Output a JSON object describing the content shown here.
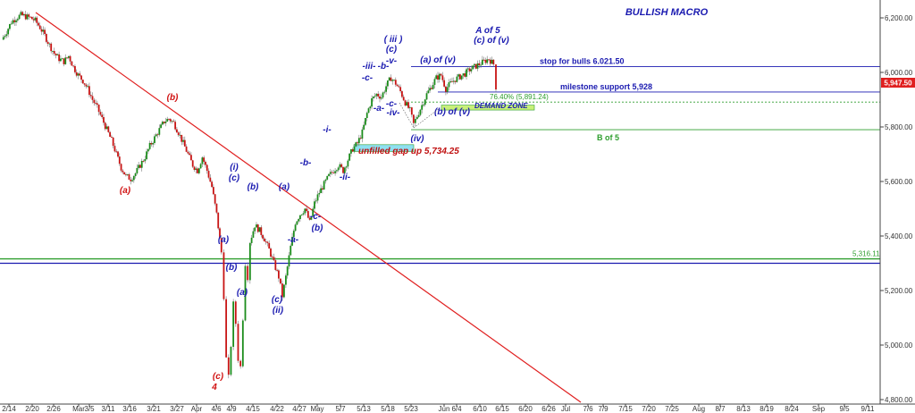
{
  "chart_data": {
    "type": "candlestick",
    "title": "BULLISH MACRO",
    "ylim": [
      4700,
      6250
    ],
    "yticks": [
      4800,
      5000,
      5200,
      5400,
      5600,
      5800,
      6000,
      6200
    ],
    "ytick_labels": [
      "4,800.00",
      "5,000.00",
      "5,200.00",
      "5,400.00",
      "5,600.00",
      "5,800.00",
      "6,000.00",
      "6,200.00"
    ],
    "x_labels": [
      "2/14",
      "2/20",
      "2/26",
      "Mar",
      "3/5",
      "3/11",
      "3/16",
      "3/21",
      "3/27",
      "Apr",
      "4/6",
      "4/9",
      "4/15",
      "4/22",
      "4/27",
      "May",
      "5/7",
      "5/13",
      "5/18",
      "5/23",
      "Jun",
      "6/4",
      "6/10",
      "6/15",
      "6/20",
      "6/26",
      "Jul",
      "7/6",
      "7/9",
      "7/15",
      "7/20",
      "7/25",
      "Aug",
      "8/7",
      "8/13",
      "8/19",
      "8/24",
      "Sep",
      "9/5",
      "9/11"
    ],
    "last_price": "5,947.50",
    "price_path": [
      [
        0,
        6120
      ],
      [
        4,
        6150
      ],
      [
        8,
        6185
      ],
      [
        12,
        6200
      ],
      [
        16,
        6210
      ],
      [
        20,
        6205
      ],
      [
        24,
        6200
      ],
      [
        28,
        6190
      ],
      [
        32,
        6165
      ],
      [
        36,
        6135
      ],
      [
        40,
        6100
      ],
      [
        44,
        6070
      ],
      [
        48,
        6050
      ],
      [
        52,
        6040
      ],
      [
        56,
        6060
      ],
      [
        60,
        6020
      ],
      [
        64,
        5990
      ],
      [
        68,
        5970
      ],
      [
        72,
        5940
      ],
      [
        76,
        5900
      ],
      [
        80,
        5870
      ],
      [
        84,
        5830
      ],
      [
        88,
        5790
      ],
      [
        92,
        5750
      ],
      [
        96,
        5700
      ],
      [
        100,
        5650
      ],
      [
        104,
        5620
      ],
      [
        108,
        5610
      ],
      [
        112,
        5630
      ],
      [
        116,
        5660
      ],
      [
        120,
        5690
      ],
      [
        124,
        5730
      ],
      [
        128,
        5760
      ],
      [
        132,
        5790
      ],
      [
        136,
        5820
      ],
      [
        140,
        5830
      ],
      [
        144,
        5815
      ],
      [
        148,
        5780
      ],
      [
        152,
        5740
      ],
      [
        156,
        5700
      ],
      [
        160,
        5660
      ],
      [
        164,
        5640
      ],
      [
        168,
        5690
      ],
      [
        172,
        5640
      ],
      [
        176,
        5580
      ],
      [
        180,
        5480
      ],
      [
        184,
        5340
      ],
      [
        186,
        5180
      ],
      [
        188,
        4950
      ],
      [
        190,
        4880
      ],
      [
        192,
        5000
      ],
      [
        194,
        5150
      ],
      [
        196,
        5080
      ],
      [
        198,
        4950
      ],
      [
        200,
        4920
      ],
      [
        202,
        5100
      ],
      [
        204,
        5300
      ],
      [
        206,
        5250
      ],
      [
        208,
        5380
      ],
      [
        212,
        5440
      ],
      [
        216,
        5420
      ],
      [
        220,
        5390
      ],
      [
        224,
        5350
      ],
      [
        228,
        5300
      ],
      [
        232,
        5250
      ],
      [
        235,
        5180
      ],
      [
        238,
        5250
      ],
      [
        242,
        5360
      ],
      [
        246,
        5450
      ],
      [
        250,
        5480
      ],
      [
        254,
        5500
      ],
      [
        258,
        5450
      ],
      [
        262,
        5520
      ],
      [
        266,
        5560
      ],
      [
        270,
        5590
      ],
      [
        274,
        5620
      ],
      [
        278,
        5640
      ],
      [
        282,
        5660
      ],
      [
        286,
        5640
      ],
      [
        290,
        5680
      ],
      [
        294,
        5720
      ],
      [
        298,
        5740
      ],
      [
        302,
        5780
      ],
      [
        306,
        5850
      ],
      [
        310,
        5900
      ],
      [
        314,
        5920
      ],
      [
        318,
        5910
      ],
      [
        322,
        5950
      ],
      [
        326,
        5980
      ],
      [
        330,
        5960
      ],
      [
        334,
        5930
      ],
      [
        338,
        5890
      ],
      [
        342,
        5860
      ],
      [
        345,
        5810
      ],
      [
        348,
        5840
      ],
      [
        352,
        5880
      ],
      [
        356,
        5920
      ],
      [
        360,
        5950
      ],
      [
        364,
        5980
      ],
      [
        368,
        5990
      ],
      [
        372,
        5940
      ],
      [
        376,
        5960
      ],
      [
        380,
        5975
      ],
      [
        384,
        5985
      ],
      [
        388,
        5995
      ],
      [
        392,
        6010
      ],
      [
        396,
        6020
      ],
      [
        400,
        6030
      ],
      [
        404,
        6040
      ],
      [
        408,
        6050
      ],
      [
        412,
        6030
      ],
      [
        414,
        5947
      ]
    ],
    "levels": [
      {
        "value": 6021.5,
        "label": "stop for bulls 6.021.50",
        "color": "#1a1ab0"
      },
      {
        "value": 5928,
        "label": "milestone support  5,928",
        "color": "#1a1ab0"
      },
      {
        "value": 5891.24,
        "label": "76.40% (5,891.24)",
        "color": "#2e9e2e"
      },
      {
        "value": 5790,
        "label": "B of 5",
        "color": "#2e9e2e"
      },
      {
        "value": 5316.11,
        "label": "5,316.11",
        "color": "#2e9e2e"
      },
      {
        "value": 5300,
        "label": "",
        "color": "#1a1ab0"
      }
    ],
    "zones": [
      {
        "label": "DEMAND ZONE",
        "from": 5862,
        "to": 5880,
        "color": "#c8f078"
      },
      {
        "label": "unfilled gap up 5,734.25",
        "from": 5710,
        "to": 5735,
        "color": "#8ee0f0"
      }
    ],
    "waves": [
      {
        "text": "(b)",
        "color": "#d01010"
      },
      {
        "text": "(a)",
        "color": "#d01010"
      },
      {
        "text": "(c)",
        "color": "#d01010"
      },
      {
        "text": "4",
        "color": "#d01010"
      },
      {
        "text": "(i)",
        "color": "#1a1ab0"
      },
      {
        "text": "(c)",
        "color": "#1a1ab0"
      },
      {
        "text": "(b)",
        "color": "#1a1ab0"
      },
      {
        "text": "(a)",
        "color": "#1a1ab0"
      },
      {
        "text": "(a)",
        "color": "#1a1ab0"
      },
      {
        "text": "(b)",
        "color": "#1a1ab0"
      },
      {
        "text": "-a-",
        "color": "#1a1ab0"
      },
      {
        "text": "(c)",
        "color": "#1a1ab0"
      },
      {
        "text": "(ii)",
        "color": "#1a1ab0"
      },
      {
        "text": "(a)",
        "color": "#1a1ab0"
      },
      {
        "text": "-c-",
        "color": "#1a1ab0"
      },
      {
        "text": "(b)",
        "color": "#1a1ab0"
      },
      {
        "text": "-b-",
        "color": "#1a1ab0"
      },
      {
        "text": "-i-",
        "color": "#1a1ab0"
      },
      {
        "text": "-ii-",
        "color": "#1a1ab0"
      },
      {
        "text": "-iii-",
        "color": "#1a1ab0"
      },
      {
        "text": "-c-",
        "color": "#1a1ab0"
      },
      {
        "text": "-b-",
        "color": "#1a1ab0"
      },
      {
        "text": "-v-",
        "color": "#1a1ab0"
      },
      {
        "text": "( iii )",
        "color": "#1a1ab0"
      },
      {
        "text": "(c)",
        "color": "#1a1ab0"
      },
      {
        "text": "-a-",
        "color": "#1a1ab0"
      },
      {
        "text": "-c-",
        "color": "#1a1ab0"
      },
      {
        "text": "-iv-",
        "color": "#1a1ab0"
      },
      {
        "text": "(iv)",
        "color": "#1a1ab0"
      },
      {
        "text": "(a) of (v)",
        "color": "#1a1ab0"
      },
      {
        "text": "(b) of (v)",
        "color": "#1a1ab0"
      },
      {
        "text": "A of 5",
        "color": "#1a1ab0"
      },
      {
        "text": "(c) of (v)",
        "color": "#1a1ab0"
      }
    ],
    "trendline": {
      "color": "#e02020"
    }
  }
}
